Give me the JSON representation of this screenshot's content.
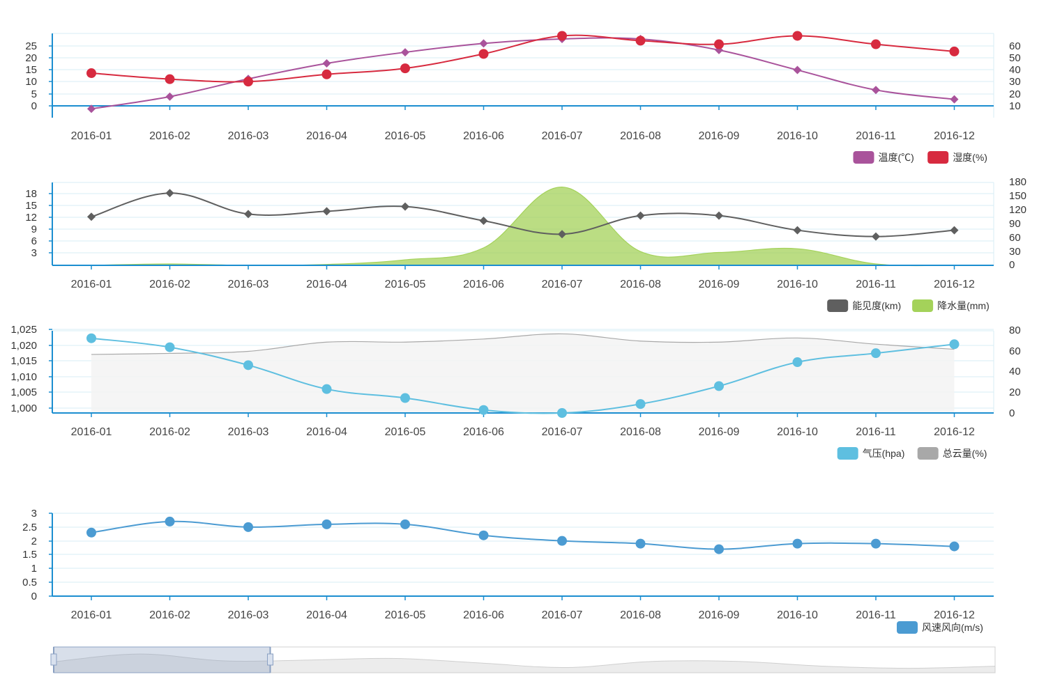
{
  "colors": {
    "axis": "#1b8ed0",
    "grid": "#d7ecf6",
    "temp": "#a9539b",
    "humidity": "#d72a3f",
    "visibility": "#5f5f5f",
    "rain": "#a4d25a",
    "pressure": "#5ebfe0",
    "cloud": "#a8a8a8",
    "wind": "#4b9bd2"
  },
  "chart_data": [
    {
      "type": "line",
      "categories": [
        "2016-01",
        "2016-02",
        "2016-03",
        "2016-04",
        "2016-05",
        "2016-06",
        "2016-07",
        "2016-08",
        "2016-09",
        "2016-10",
        "2016-11",
        "2016-12"
      ],
      "left_axis": {
        "min": -8,
        "max": 30,
        "ticks": [
          "25",
          "20",
          "15",
          "10",
          "5",
          "0"
        ]
      },
      "right_axis": {
        "min": 0,
        "max": 70,
        "ticks": [
          "60",
          "50",
          "40",
          "30",
          "20",
          "10"
        ]
      },
      "series": [
        {
          "name": "温度(℃)",
          "axis": "left",
          "marker": "diamond",
          "values": [
            -4,
            1.5,
            9.5,
            16.5,
            21.5,
            25.5,
            27.5,
            27.5,
            22.5,
            13.5,
            4.5,
            0.3
          ]
        },
        {
          "name": "湿度(%)",
          "axis": "right",
          "marker": "circle",
          "values": [
            37,
            32,
            30,
            36,
            41,
            53,
            68,
            64,
            61,
            68,
            61,
            55
          ]
        }
      ],
      "legend": [
        "温度(℃)",
        "湿度(%)"
      ]
    },
    {
      "type": "line",
      "categories": [
        "2016-01",
        "2016-02",
        "2016-03",
        "2016-04",
        "2016-05",
        "2016-06",
        "2016-07",
        "2016-08",
        "2016-09",
        "2016-10",
        "2016-11",
        "2016-12"
      ],
      "left_axis": {
        "min": 0,
        "max": 21,
        "ticks": [
          "18",
          "15",
          "12",
          "9",
          "6",
          "3"
        ]
      },
      "right_axis": {
        "min": 0,
        "max": 180,
        "ticks": [
          "180",
          "150",
          "120",
          "90",
          "60",
          "30",
          "0"
        ]
      },
      "series": [
        {
          "name": "能见度(km)",
          "axis": "left",
          "marker": "diamond",
          "values": [
            12.3,
            18.3,
            13.0,
            13.7,
            14.9,
            11.3,
            7.9,
            12.6,
            12.6,
            8.9,
            7.3,
            8.9
          ]
        },
        {
          "name": "降水量(mm)",
          "axis": "right",
          "marker": "none",
          "area": true,
          "values": [
            0,
            3,
            0,
            2,
            12,
            38,
            170,
            30,
            28,
            36,
            3,
            0
          ]
        }
      ],
      "legend": [
        "能见度(km)",
        "降水量(mm)"
      ]
    },
    {
      "type": "line",
      "categories": [
        "2016-01",
        "2016-02",
        "2016-03",
        "2016-04",
        "2016-05",
        "2016-06",
        "2016-07",
        "2016-08",
        "2016-09",
        "2016-10",
        "2016-11",
        "2016-12"
      ],
      "left_axis": {
        "min": 998,
        "max": 1025.5,
        "ticks": [
          "1,025",
          "1,020",
          "1,015",
          "1,010",
          "1,005",
          "1,000"
        ]
      },
      "right_axis": {
        "min": 0,
        "max": 80,
        "ticks": [
          "80",
          "60",
          "40",
          "20",
          "0"
        ]
      },
      "series": [
        {
          "name": "气压(hpa)",
          "axis": "left",
          "marker": "circle",
          "values": [
            1023,
            1020,
            1014,
            1006,
            1003,
            999,
            998,
            1001,
            1007,
            1015,
            1018,
            1021
          ]
        },
        {
          "name": "总云量(%)",
          "axis": "right",
          "marker": "none",
          "area": true,
          "values": [
            57,
            58,
            60,
            69,
            69,
            72,
            77,
            70,
            69,
            73,
            67,
            62
          ]
        }
      ],
      "legend": [
        "气压(hpa)",
        "总云量(%)"
      ]
    },
    {
      "type": "line",
      "categories": [
        "2016-01",
        "2016-02",
        "2016-03",
        "2016-04",
        "2016-05",
        "2016-06",
        "2016-07",
        "2016-08",
        "2016-09",
        "2016-10",
        "2016-11",
        "2016-12"
      ],
      "left_axis": {
        "min": 0,
        "max": 3,
        "ticks": [
          "3",
          "2.5",
          "2",
          "1.5",
          "1",
          "0.5",
          "0"
        ]
      },
      "series": [
        {
          "name": "风速风向(m/s)",
          "axis": "left",
          "marker": "circle",
          "values": [
            2.3,
            2.7,
            2.5,
            2.6,
            2.6,
            2.2,
            2.0,
            1.9,
            1.7,
            1.9,
            1.9,
            1.8
          ]
        }
      ],
      "legend": [
        "风速风向(m/s)"
      ]
    }
  ],
  "data_zoom": {
    "start_percent": 0,
    "end_percent": 23
  }
}
